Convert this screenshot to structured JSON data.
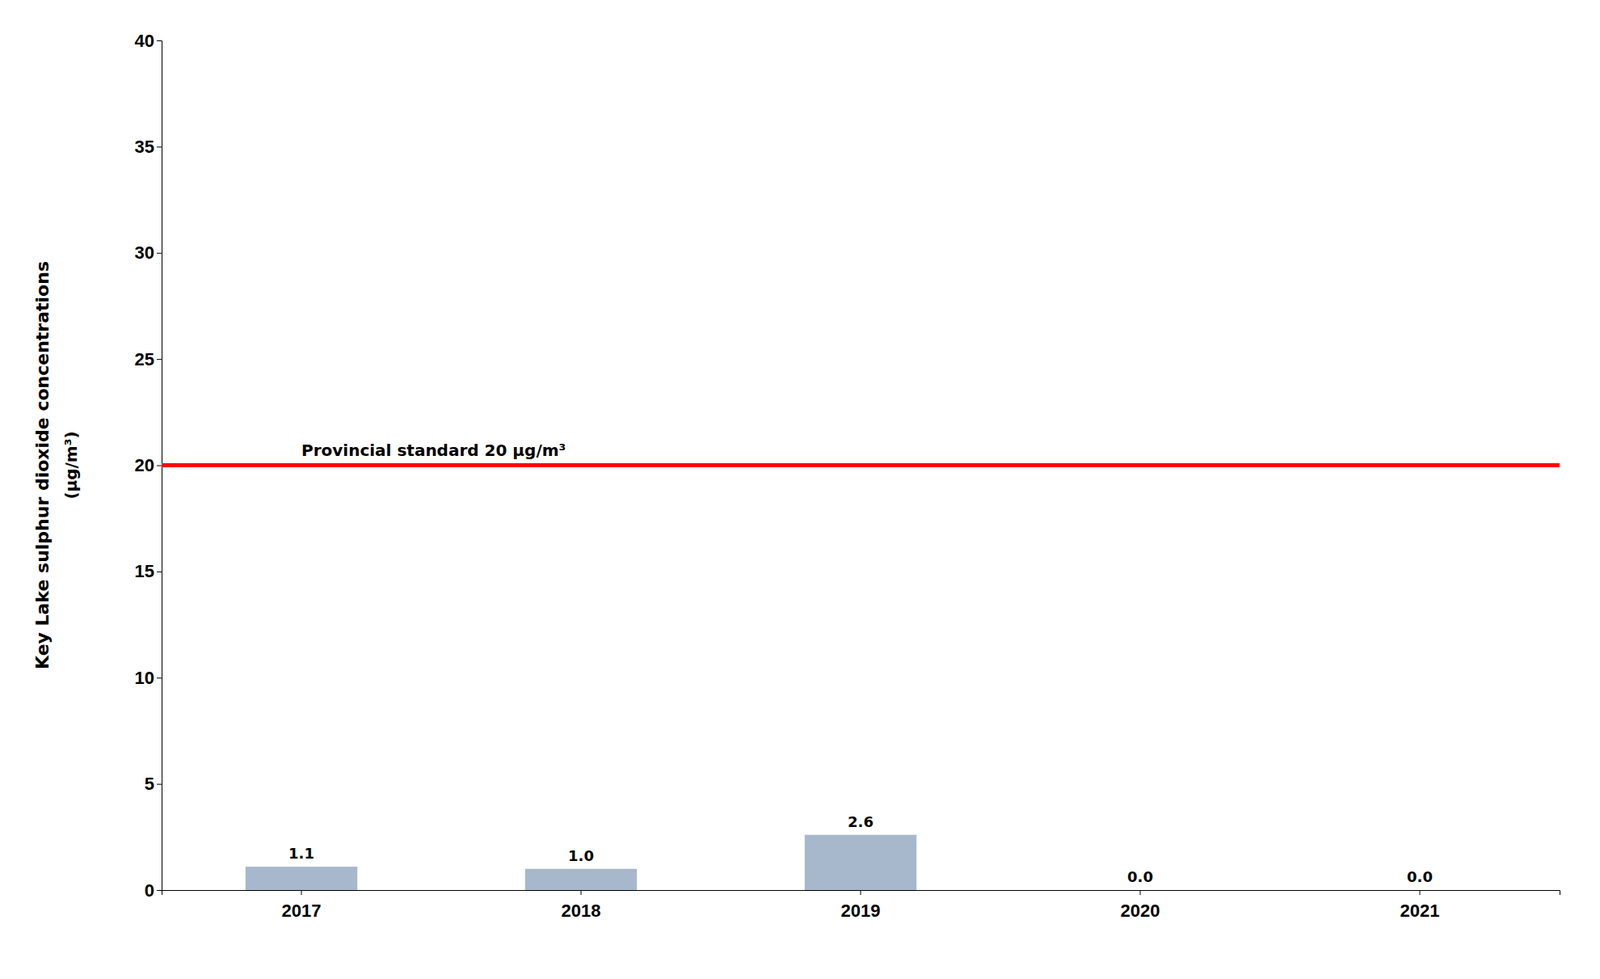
{
  "chart_data": {
    "type": "bar",
    "categories": [
      "2017",
      "2018",
      "2019",
      "2020",
      "2021"
    ],
    "values": [
      1.1,
      1.0,
      2.6,
      0.0,
      0.0
    ],
    "value_labels": [
      "1.1",
      "1.0",
      "2.6",
      "0.0",
      "0.0"
    ],
    "data_labels": true,
    "color": "#a8b8cc",
    "ylabel": "Key Lake sulphur dioxide concentrations",
    "ylabel_units": "(μg/m³)",
    "ylim": [
      0,
      40
    ],
    "yticks": [
      0,
      5,
      10,
      15,
      20,
      25,
      30,
      35,
      40
    ],
    "grid": false,
    "reference_lines": [
      {
        "value": 20,
        "label": "Provincial standard 20 μg/m³",
        "color": "#ff0000"
      }
    ]
  }
}
